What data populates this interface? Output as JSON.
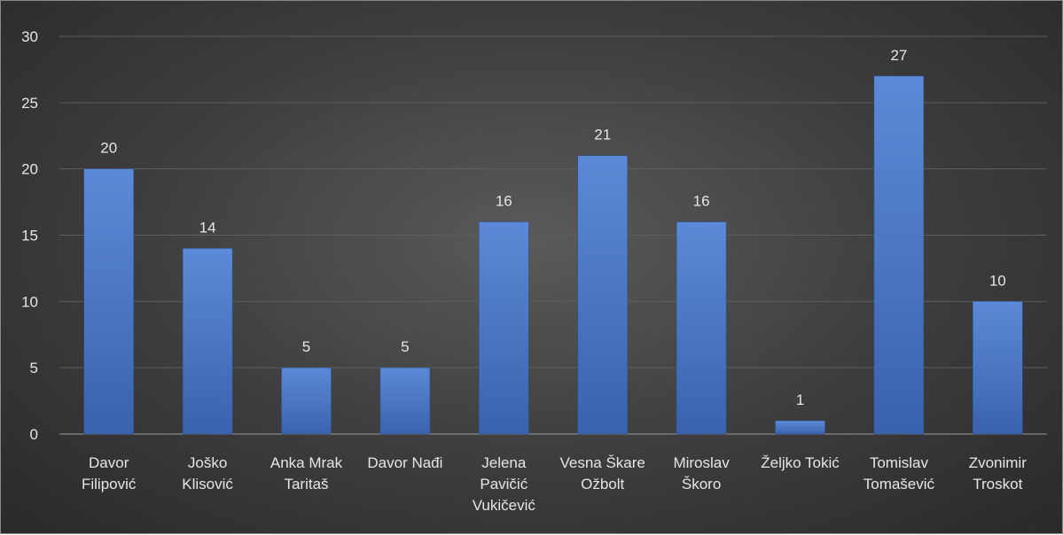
{
  "chart_data": {
    "type": "bar",
    "title": "",
    "xlabel": "",
    "ylabel": "",
    "ylim": [
      0,
      30
    ],
    "yticks": [
      0,
      5,
      10,
      15,
      20,
      25,
      30
    ],
    "grid": true,
    "legend": "none",
    "bar_color": "#4472c4",
    "categories": [
      [
        "Davor",
        "Filipović"
      ],
      [
        "Joško",
        "Klisović"
      ],
      [
        "Anka Mrak",
        "Taritaš"
      ],
      [
        "Davor Nađi"
      ],
      [
        "Jelena",
        "Pavičić",
        "Vukičević"
      ],
      [
        "Vesna Škare",
        "Ožbolt"
      ],
      [
        "Miroslav",
        "Škoro"
      ],
      [
        "Željko Tokić"
      ],
      [
        "Tomislav",
        "Tomašević"
      ],
      [
        "Zvonimir",
        "Troskot"
      ]
    ],
    "values": [
      20,
      14,
      5,
      5,
      16,
      21,
      16,
      1,
      27,
      10
    ]
  }
}
